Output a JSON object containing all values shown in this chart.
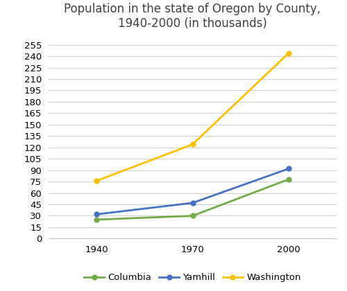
{
  "title": "Population in the state of Oregon by County,\n1940-2000 (in thousands)",
  "years": [
    1940,
    1970,
    2000
  ],
  "series": {
    "Columbia": {
      "values": [
        25,
        30,
        78
      ],
      "color": "#70ad47",
      "marker": "o"
    },
    "Yamhill": {
      "values": [
        32,
        47,
        92
      ],
      "color": "#4472c4",
      "marker": "o"
    },
    "Washington": {
      "values": [
        76,
        124,
        244
      ],
      "color": "#ffc000",
      "marker": "o"
    }
  },
  "yticks": [
    0,
    15,
    30,
    45,
    60,
    75,
    90,
    105,
    120,
    135,
    150,
    165,
    180,
    195,
    210,
    225,
    240,
    255
  ],
  "ylim": [
    0,
    268
  ],
  "xlim": [
    1925,
    2015
  ],
  "background_color": "#ffffff",
  "grid_color": "#d0d0d0",
  "title_color": "#404040",
  "title_fontsize": 12,
  "tick_fontsize": 9.5,
  "legend_fontsize": 9.5,
  "marker_size": 5,
  "line_width": 2.0
}
